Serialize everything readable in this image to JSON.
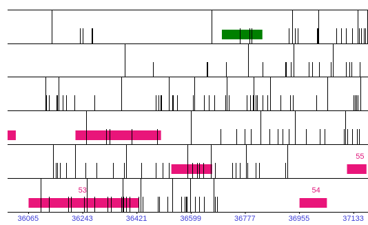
{
  "track_lines": [
    [
      40.7,
      67.2,
      69.5,
      78.1,
      78.9,
      189.6,
      215.8,
      225.1,
      226.7,
      261.4,
      264.6,
      267.0,
      269.6,
      287.6,
      288.4,
      289.2,
      305.7,
      309.7,
      314.4,
      320.3,
      325.7,
      326.6,
      328.6,
      331.2,
      332.2,
      334.3,
      336.5
    ],
    [
      108.9,
      135.3,
      185.2,
      185.7,
      202.9,
      223.4,
      237.1,
      258.2,
      259.0,
      263.4,
      265.9,
      279.6,
      283.1,
      289.4,
      300.4,
      302.4,
      314.3,
      318.0,
      319.8,
      327.4
    ],
    [
      35.1,
      35.9,
      38.2,
      45.7,
      46.0,
      47.1,
      51.0,
      54.6,
      62.0,
      80.9,
      105.9,
      137.8,
      140.2,
      142.3,
      142.9,
      150.1,
      152.8,
      153.8,
      157.3,
      172.5,
      173.4,
      182.6,
      186.9,
      192.4,
      202.1,
      203.4,
      205.5,
      222.1,
      225.6,
      227.9,
      228.4,
      230.6,
      231.6,
      237.0,
      241.4,
      243.9,
      253.7,
      262.9,
      265.5,
      286.9,
      297.1,
      321.6,
      323.1,
      324.1,
      325.6,
      327.9
    ],
    [
      73.2,
      91.7,
      94.6,
      115.6,
      139.2,
      170.2,
      198.2,
      212.8,
      220.1,
      226.1,
      234.9,
      243.2,
      251.4,
      255.7,
      261.3,
      267.3,
      277.5,
      290.4,
      294.7,
      312.7,
      313.9,
      315.9,
      320.1,
      324.6,
      326.4
    ],
    [
      42.5,
      44.6,
      46.1,
      48.7,
      54.6,
      62.6,
      72.3,
      82.9,
      97.9,
      108.5,
      110.3,
      124.4,
      137.5,
      144.4,
      149.6,
      167.1,
      171.6,
      176.0,
      177.8,
      182.1,
      188.9,
      193.1,
      208.9,
      212.2,
      216.0,
      221.6,
      222.8,
      230.3,
      233.6,
      258.4,
      259.9
    ],
    [
      30.9,
      38.6,
      56.6,
      58.8,
      70.9,
      73.5,
      81.0,
      93.1,
      96.4,
      105.8,
      106.8,
      107.8,
      110.0,
      113.4,
      122.0,
      123.9,
      125.3,
      139.5,
      140.8,
      148.7,
      152.9,
      161.4,
      164.9,
      165.6,
      166.6,
      169.9,
      170.0,
      174.4,
      178.2,
      182.6,
      191.6,
      192.5,
      195.0
    ]
  ],
  "features": [
    {
      "track": 0,
      "start": 36700,
      "end": 36833,
      "color": "#008000"
    },
    {
      "track": 3,
      "start": 35996,
      "end": 36023,
      "color": "#e9157a"
    },
    {
      "track": 3,
      "start": 36219,
      "end": 36500,
      "color": "#e9157a"
    },
    {
      "track": 4,
      "start": 36534,
      "end": 36668,
      "color": "#e9157a"
    },
    {
      "track": 4,
      "start": 37111,
      "end": 37175,
      "color": "#e9157a",
      "label": "55"
    },
    {
      "track": 5,
      "start": 36065,
      "end": 36428,
      "color": "#e9157a",
      "label": "53"
    },
    {
      "track": 5,
      "start": 36955,
      "end": 37045,
      "color": "#e9157a",
      "label": "54"
    }
  ],
  "axis": {
    "ticks": [
      "36065",
      "36243",
      "36421",
      "36599",
      "36777",
      "36955",
      "37133"
    ],
    "tick_values": [
      36065,
      36243,
      36421,
      36599,
      36777,
      36955,
      37133
    ]
  },
  "colors": {
    "axis_label": "#3b3bd6",
    "feature_label": "#e0157a",
    "line": "#000000"
  }
}
